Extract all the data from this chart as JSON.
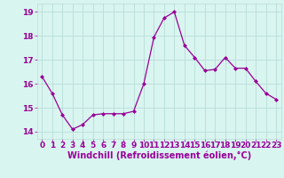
{
  "x": [
    0,
    1,
    2,
    3,
    4,
    5,
    6,
    7,
    8,
    9,
    10,
    11,
    12,
    13,
    14,
    15,
    16,
    17,
    18,
    19,
    20,
    21,
    22,
    23
  ],
  "y": [
    16.3,
    15.6,
    14.7,
    14.1,
    14.3,
    14.7,
    14.75,
    14.75,
    14.75,
    14.85,
    16.0,
    17.95,
    18.75,
    19.0,
    17.6,
    17.1,
    16.55,
    16.6,
    17.1,
    16.65,
    16.65,
    16.1,
    15.6,
    15.35
  ],
  "line_color": "#990099",
  "marker": "D",
  "marker_size": 2,
  "bg_color": "#d9f5f0",
  "grid_color": "#b8ddd8",
  "xlabel": "Windchill (Refroidissement éolien,°C)",
  "xlabel_color": "#990099",
  "xlabel_fontsize": 7,
  "tick_color": "#990099",
  "tick_fontsize": 6.5,
  "yticks": [
    14,
    15,
    16,
    17,
    18,
    19
  ],
  "xticks": [
    0,
    1,
    2,
    3,
    4,
    5,
    6,
    7,
    8,
    9,
    10,
    11,
    12,
    13,
    14,
    15,
    16,
    17,
    18,
    19,
    20,
    21,
    22,
    23
  ],
  "ylim": [
    13.7,
    19.35
  ],
  "xlim": [
    -0.5,
    23.5
  ]
}
